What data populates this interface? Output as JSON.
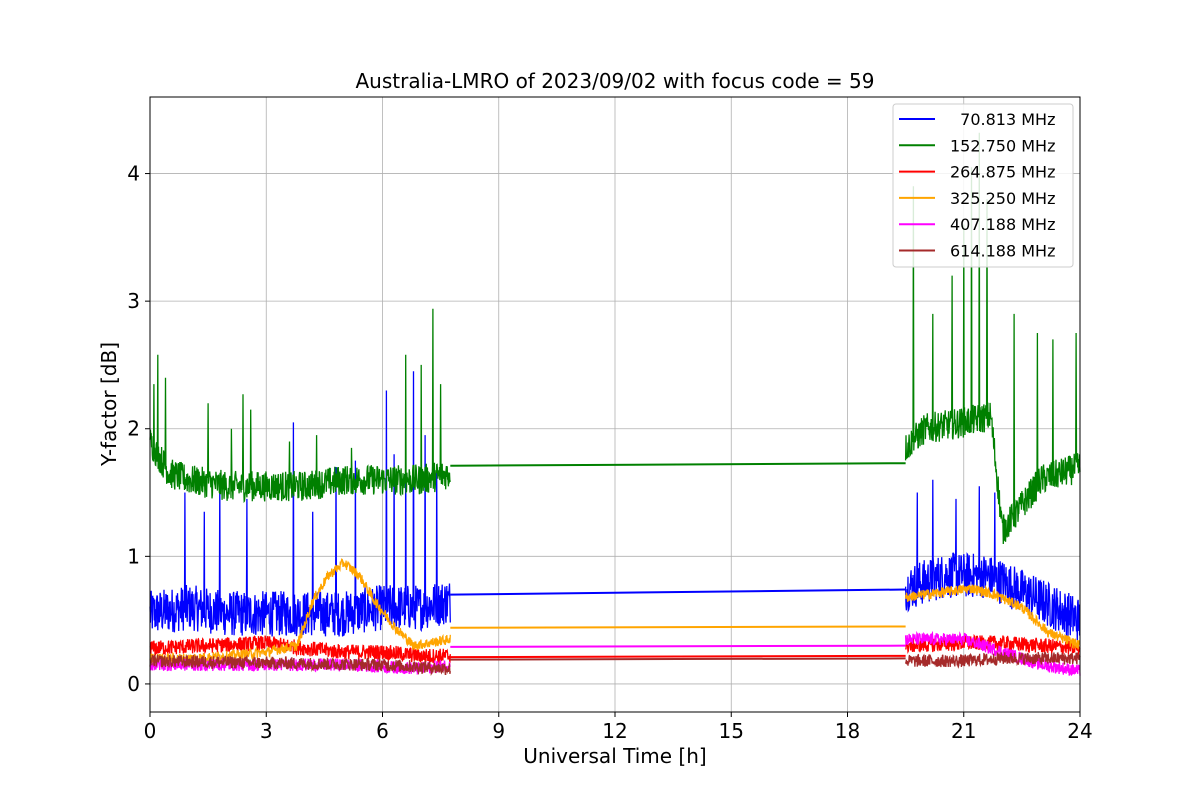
{
  "chart_data": {
    "type": "line",
    "title": "Australia-LMRO of 2023/09/02 with focus code = 59",
    "xlabel": "Universal Time [h]",
    "ylabel": "Y-factor [dB]",
    "xlim": [
      0,
      24
    ],
    "ylim": [
      -0.22,
      4.6
    ],
    "xticks": [
      0,
      3,
      6,
      9,
      12,
      15,
      18,
      21,
      24
    ],
    "yticks": [
      0,
      1,
      2,
      3,
      4
    ],
    "grid": true,
    "legend_position": "top-right",
    "gap_hours": [
      7.75,
      19.5
    ],
    "series": [
      {
        "name": "  70.813 MHz",
        "color": "#0000ff",
        "baseline": [
          [
            0,
            0.55
          ],
          [
            1,
            0.6
          ],
          [
            2,
            0.55
          ],
          [
            3,
            0.55
          ],
          [
            4,
            0.55
          ],
          [
            5,
            0.55
          ],
          [
            6,
            0.6
          ],
          [
            7,
            0.6
          ],
          [
            7.75,
            0.65
          ],
          [
            19.5,
            0.75
          ],
          [
            20.5,
            0.85
          ],
          [
            21.5,
            0.85
          ],
          [
            22,
            0.8
          ],
          [
            23,
            0.65
          ],
          [
            24,
            0.5
          ]
        ],
        "noise": 0.18,
        "spikes": [
          [
            0.9,
            1.5
          ],
          [
            1.4,
            1.35
          ],
          [
            1.8,
            1.6
          ],
          [
            2.5,
            1.45
          ],
          [
            3.7,
            2.05
          ],
          [
            4.2,
            1.35
          ],
          [
            4.8,
            1.7
          ],
          [
            5.3,
            1.75
          ],
          [
            6.1,
            2.3
          ],
          [
            6.3,
            1.8
          ],
          [
            6.6,
            1.9
          ],
          [
            6.8,
            2.45
          ],
          [
            7.1,
            1.95
          ],
          [
            7.4,
            1.7
          ],
          [
            19.8,
            1.5
          ],
          [
            20.2,
            1.6
          ],
          [
            20.8,
            1.45
          ],
          [
            21.4,
            1.55
          ],
          [
            21.8,
            1.5
          ]
        ],
        "gap_line": [
          [
            7.75,
            0.7
          ],
          [
            19.5,
            0.74
          ]
        ]
      },
      {
        "name": "152.750 MHz",
        "color": "#008000",
        "baseline": [
          [
            0,
            1.9
          ],
          [
            0.5,
            1.65
          ],
          [
            1,
            1.6
          ],
          [
            2,
            1.55
          ],
          [
            3,
            1.55
          ],
          [
            4,
            1.55
          ],
          [
            5,
            1.6
          ],
          [
            6,
            1.6
          ],
          [
            7,
            1.6
          ],
          [
            7.75,
            1.65
          ],
          [
            19.5,
            1.85
          ],
          [
            20,
            2.0
          ],
          [
            21,
            2.05
          ],
          [
            21.7,
            2.1
          ],
          [
            22,
            1.2
          ],
          [
            23,
            1.6
          ],
          [
            24,
            1.7
          ]
        ],
        "noise": 0.12,
        "spikes": [
          [
            0.1,
            2.35
          ],
          [
            0.2,
            2.58
          ],
          [
            0.4,
            2.4
          ],
          [
            1.5,
            2.2
          ],
          [
            2.1,
            2.0
          ],
          [
            2.4,
            2.27
          ],
          [
            2.6,
            2.15
          ],
          [
            3.6,
            1.9
          ],
          [
            4.3,
            1.95
          ],
          [
            5.2,
            1.85
          ],
          [
            6.6,
            2.58
          ],
          [
            7.0,
            2.5
          ],
          [
            7.3,
            2.94
          ],
          [
            7.5,
            2.35
          ],
          [
            19.7,
            3.9
          ],
          [
            20.2,
            2.9
          ],
          [
            20.7,
            3.2
          ],
          [
            21.0,
            3.6
          ],
          [
            21.2,
            4.05
          ],
          [
            21.4,
            4.32
          ],
          [
            21.6,
            3.8
          ],
          [
            22.3,
            2.9
          ],
          [
            22.9,
            2.75
          ],
          [
            23.3,
            2.7
          ],
          [
            23.9,
            2.75
          ]
        ],
        "gap_line": [
          [
            7.75,
            1.71
          ],
          [
            19.5,
            1.73
          ]
        ]
      },
      {
        "name": "264.875 MHz",
        "color": "#ff0000",
        "baseline": [
          [
            0,
            0.28
          ],
          [
            3,
            0.32
          ],
          [
            4,
            0.28
          ],
          [
            5,
            0.25
          ],
          [
            6,
            0.25
          ],
          [
            7,
            0.22
          ],
          [
            7.75,
            0.22
          ],
          [
            19.5,
            0.3
          ],
          [
            21,
            0.32
          ],
          [
            22,
            0.32
          ],
          [
            23,
            0.3
          ],
          [
            24,
            0.28
          ]
        ],
        "noise": 0.06,
        "spikes": [],
        "gap_line": [
          [
            7.75,
            0.21
          ],
          [
            19.5,
            0.22
          ]
        ]
      },
      {
        "name": "325.250 MHz",
        "color": "#ffa500",
        "baseline": [
          [
            0,
            0.2
          ],
          [
            1,
            0.2
          ],
          [
            2,
            0.22
          ],
          [
            3,
            0.25
          ],
          [
            3.8,
            0.3
          ],
          [
            4.2,
            0.65
          ],
          [
            4.6,
            0.85
          ],
          [
            5.0,
            0.95
          ],
          [
            5.4,
            0.85
          ],
          [
            5.8,
            0.65
          ],
          [
            6.3,
            0.45
          ],
          [
            6.8,
            0.3
          ],
          [
            7.75,
            0.35
          ],
          [
            19.5,
            0.68
          ],
          [
            20.5,
            0.72
          ],
          [
            21.2,
            0.75
          ],
          [
            21.8,
            0.7
          ],
          [
            22.5,
            0.6
          ],
          [
            23.2,
            0.4
          ],
          [
            24,
            0.3
          ]
        ],
        "noise": 0.04,
        "spikes": [],
        "gap_line": [
          [
            7.75,
            0.44
          ],
          [
            19.5,
            0.45
          ]
        ]
      },
      {
        "name": "407.188 MHz",
        "color": "#ff00ff",
        "baseline": [
          [
            0,
            0.15
          ],
          [
            3,
            0.15
          ],
          [
            5,
            0.15
          ],
          [
            7,
            0.12
          ],
          [
            7.75,
            0.15
          ],
          [
            19.5,
            0.35
          ],
          [
            21,
            0.35
          ],
          [
            22,
            0.25
          ],
          [
            23,
            0.15
          ],
          [
            24,
            0.1
          ]
        ],
        "noise": 0.05,
        "spikes": [],
        "gap_line": [
          [
            7.75,
            0.29
          ],
          [
            19.5,
            0.3
          ]
        ]
      },
      {
        "name": "614.188 MHz",
        "color": "#a52a2a",
        "baseline": [
          [
            0,
            0.18
          ],
          [
            2,
            0.17
          ],
          [
            4,
            0.16
          ],
          [
            6,
            0.15
          ],
          [
            7.75,
            0.12
          ],
          [
            19.5,
            0.18
          ],
          [
            21,
            0.18
          ],
          [
            22,
            0.2
          ],
          [
            23,
            0.2
          ],
          [
            24,
            0.2
          ]
        ],
        "noise": 0.05,
        "spikes": [],
        "gap_line": [
          [
            7.75,
            0.19
          ],
          [
            19.5,
            0.2
          ]
        ]
      }
    ]
  }
}
